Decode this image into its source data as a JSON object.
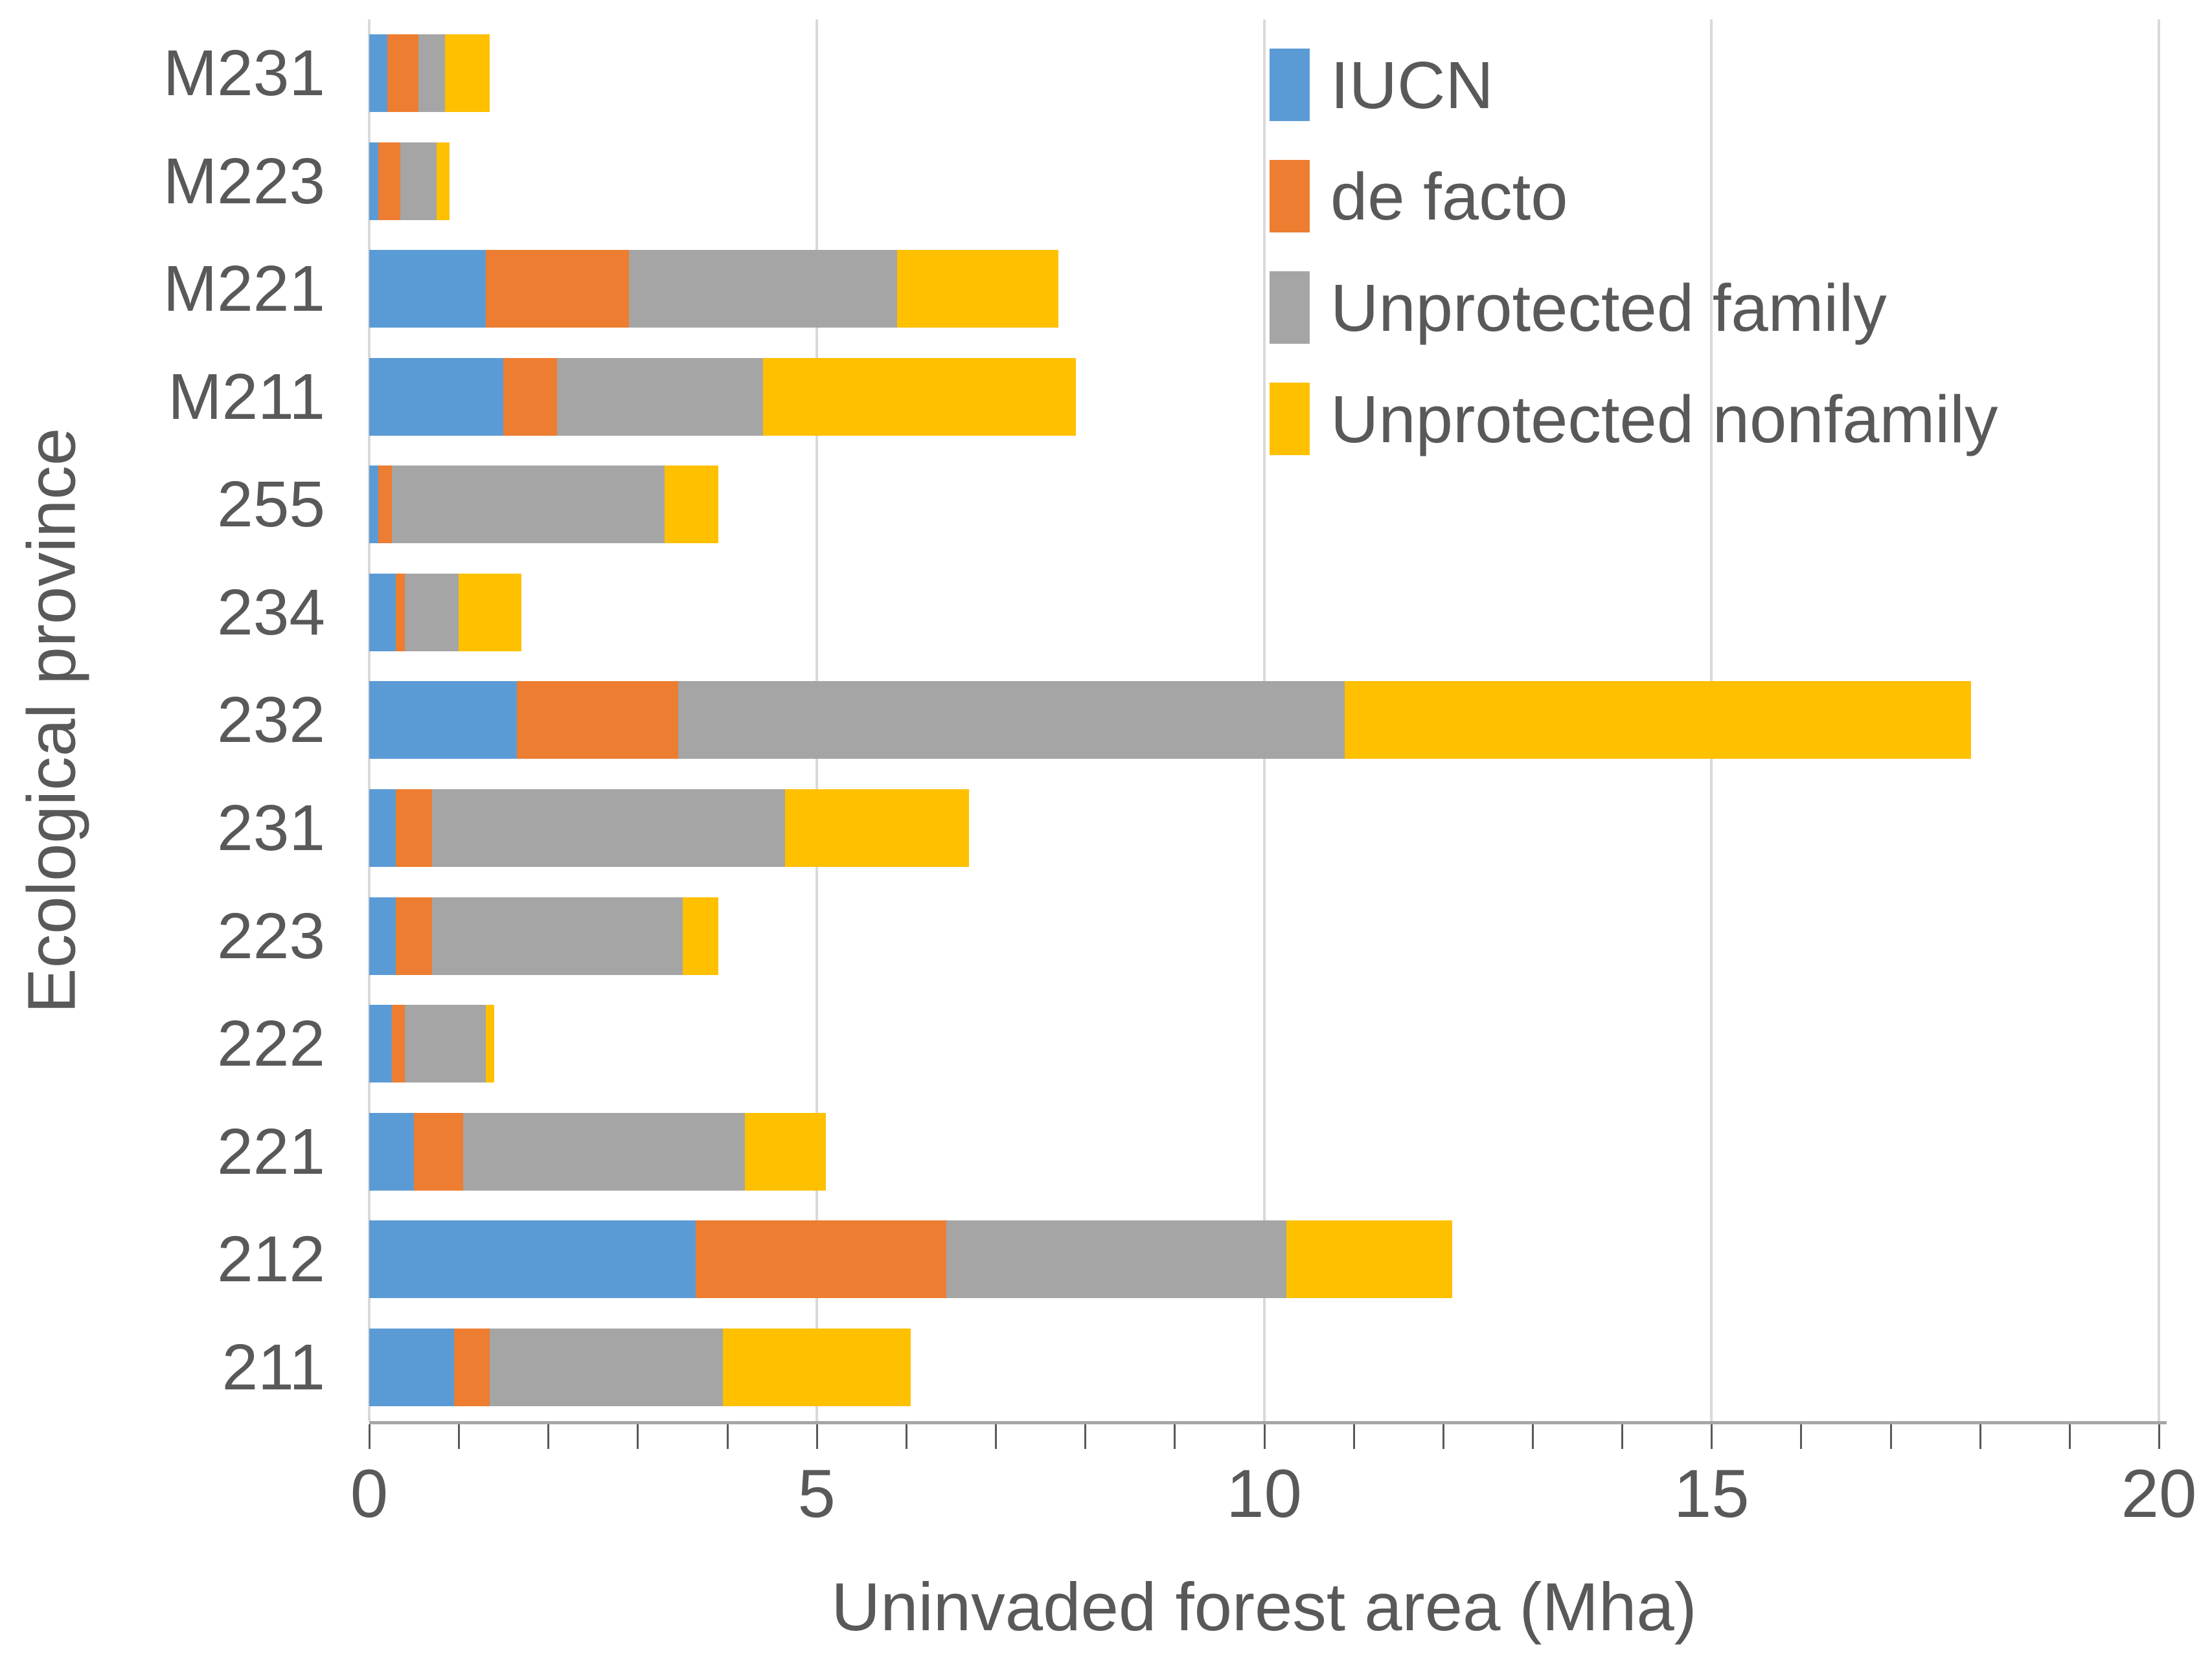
{
  "chart_data": {
    "type": "bar",
    "orientation": "horizontal",
    "stacked": true,
    "title": "",
    "xlabel": "Uninvaded forest area (Mha)",
    "ylabel": "Ecological province",
    "xlim": [
      0,
      20
    ],
    "x_ticks": [
      0,
      5,
      10,
      15,
      20
    ],
    "minor_tick_step": 1,
    "grid": "vertical gridlines every 5",
    "legend_position": "top-right inside plot",
    "categories": [
      "M231",
      "M223",
      "M221",
      "M211",
      "255",
      "234",
      "232",
      "231",
      "223",
      "222",
      "221",
      "212",
      "211"
    ],
    "series": [
      {
        "name": "IUCN",
        "color": "#5B9BD5",
        "values": [
          0.2,
          0.1,
          1.3,
          1.5,
          0.1,
          0.3,
          1.65,
          0.3,
          0.3,
          0.25,
          0.5,
          3.65,
          0.95
        ]
      },
      {
        "name": "de facto",
        "color": "#ED7D31",
        "values": [
          0.35,
          0.25,
          1.6,
          0.6,
          0.15,
          0.1,
          1.8,
          0.4,
          0.4,
          0.15,
          0.55,
          2.8,
          0.4
        ]
      },
      {
        "name": "Unprotected family",
        "color": "#A5A5A5",
        "values": [
          0.3,
          0.4,
          3.0,
          2.3,
          3.05,
          0.6,
          7.45,
          3.95,
          2.8,
          0.9,
          3.15,
          3.8,
          2.6
        ]
      },
      {
        "name": "Unprotected nonfamily",
        "color": "#FFC000",
        "values": [
          0.5,
          0.15,
          1.8,
          3.5,
          0.6,
          0.7,
          7.0,
          2.05,
          0.4,
          0.1,
          0.9,
          1.85,
          2.1
        ]
      }
    ],
    "bar_totals": [
      1.35,
      0.9,
      7.7,
      7.9,
      3.9,
      1.7,
      17.9,
      6.7,
      3.9,
      1.4,
      5.1,
      12.1,
      6.05
    ]
  },
  "axes": {
    "x_title": "Uninvaded forest area (Mha)",
    "y_title": "Ecological province"
  },
  "colors": {
    "gridline": "#D9D9D9",
    "axis_line": "#A6A6A6",
    "tick_mark": "#595959",
    "text": "#595959",
    "background": "#FFFFFF"
  }
}
